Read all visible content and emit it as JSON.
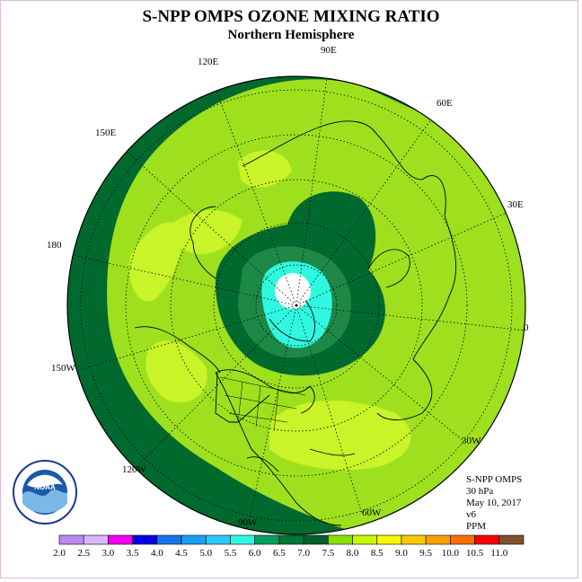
{
  "title": "S-NPP OMPS OZONE MIXING RATIO",
  "subtitle": "Northern Hemisphere",
  "longitude_labels": [
    "120E",
    "90E",
    "60E",
    "150E",
    "30E",
    "180",
    "0",
    "150W",
    "30W",
    "120W",
    "60W",
    "90W"
  ],
  "info": {
    "instrument": "S-NPP OMPS",
    "pressure": "30 hPa",
    "date": "May 10, 2017",
    "version": "v6",
    "units": "PPM"
  },
  "logo_text": "NOAA",
  "legend": {
    "labels": [
      "2.0",
      "2.5",
      "3.0",
      "3.5",
      "4.0",
      "4.5",
      "5.0",
      "5.5",
      "6.0",
      "6.5",
      "7.0",
      "7.5",
      "8.0",
      "8.5",
      "9.0",
      "9.5",
      "10.0",
      "10.5",
      "11.0"
    ],
    "colors": [
      "#b988f0",
      "#d8b8f8",
      "#f000f0",
      "#0000e8",
      "#1874e8",
      "#1aa0f0",
      "#30c8f8",
      "#30f8e0",
      "#00a060",
      "#007838",
      "#00602c",
      "#88e000",
      "#c8f800",
      "#f8f800",
      "#f8c800",
      "#f8a000",
      "#f87000",
      "#f80000",
      "#805030"
    ]
  },
  "colors": {
    "ozone_7_0_7_5": "#9ee01e",
    "ozone_7_5_8_0": "#c8f428",
    "ozone_6_5_7_0": "#006a2e",
    "ozone_6_0_6_5": "#1c8a46",
    "ozone_5_5_6_0": "#30f8e0",
    "background": "#ffffff"
  }
}
